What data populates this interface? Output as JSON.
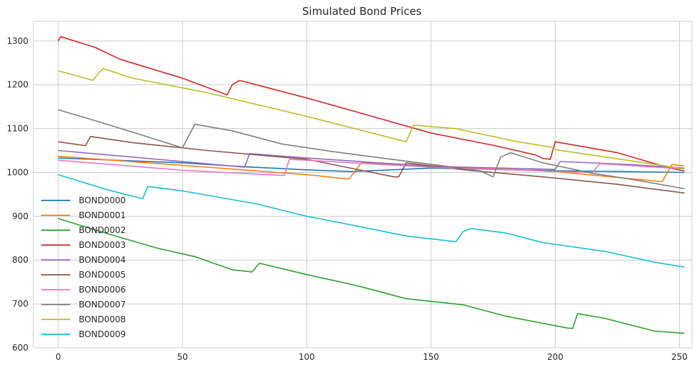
{
  "chart_data": {
    "type": "line",
    "title": "Simulated Bond Prices",
    "xlabel": "",
    "ylabel": "",
    "xlim": [
      -10,
      255
    ],
    "ylim": [
      600,
      1345
    ],
    "xticks": [
      0,
      50,
      100,
      150,
      200,
      250
    ],
    "yticks": [
      600,
      700,
      800,
      900,
      1000,
      1100,
      1200,
      1300
    ],
    "grid": true,
    "legend": "lower-left",
    "series": [
      {
        "name": "BOND0000",
        "color": "#1f77b4",
        "points": [
          [
            0,
            1033
          ],
          [
            50,
            1022
          ],
          [
            75,
            1013
          ],
          [
            100,
            1006
          ],
          [
            118,
            1002
          ],
          [
            150,
            1010
          ],
          [
            200,
            1004
          ],
          [
            252,
            1000
          ]
        ]
      },
      {
        "name": "BOND0001",
        "color": "#ff7f0e",
        "points": [
          [
            0,
            1037
          ],
          [
            60,
            1012
          ],
          [
            100,
            995
          ],
          [
            117,
            985
          ],
          [
            122,
            1022
          ],
          [
            150,
            1015
          ],
          [
            200,
            1002
          ],
          [
            243,
            979
          ],
          [
            247,
            1018
          ],
          [
            252,
            1015
          ]
        ]
      },
      {
        "name": "BOND0002",
        "color": "#2ca02c",
        "points": [
          [
            0,
            895
          ],
          [
            20,
            860
          ],
          [
            40,
            827
          ],
          [
            55,
            808
          ],
          [
            70,
            778
          ],
          [
            78,
            773
          ],
          [
            81,
            793
          ],
          [
            100,
            767
          ],
          [
            120,
            742
          ],
          [
            140,
            712
          ],
          [
            163,
            698
          ],
          [
            180,
            672
          ],
          [
            205,
            645
          ],
          [
            207,
            644
          ],
          [
            209,
            678
          ],
          [
            220,
            667
          ],
          [
            240,
            638
          ],
          [
            252,
            633
          ]
        ]
      },
      {
        "name": "BOND0003",
        "color": "#d62728",
        "points": [
          [
            0,
            1300
          ],
          [
            1,
            1310
          ],
          [
            15,
            1285
          ],
          [
            25,
            1258
          ],
          [
            50,
            1215
          ],
          [
            68,
            1177
          ],
          [
            70,
            1200
          ],
          [
            73,
            1210
          ],
          [
            100,
            1170
          ],
          [
            125,
            1130
          ],
          [
            150,
            1090
          ],
          [
            175,
            1062
          ],
          [
            192,
            1040
          ],
          [
            195,
            1032
          ],
          [
            198,
            1030
          ],
          [
            200,
            1070
          ],
          [
            225,
            1045
          ],
          [
            245,
            1012
          ],
          [
            252,
            1003
          ]
        ]
      },
      {
        "name": "BOND0004",
        "color": "#9467bd",
        "points": [
          [
            0,
            1050
          ],
          [
            40,
            1030
          ],
          [
            75,
            1012
          ],
          [
            77,
            1043
          ],
          [
            100,
            1033
          ],
          [
            150,
            1014
          ],
          [
            200,
            1007
          ],
          [
            202,
            1025
          ],
          [
            230,
            1018
          ],
          [
            252,
            1010
          ]
        ]
      },
      {
        "name": "BOND0005",
        "color": "#8c564b",
        "points": [
          [
            0,
            1070
          ],
          [
            11,
            1061
          ],
          [
            13,
            1082
          ],
          [
            30,
            1068
          ],
          [
            60,
            1050
          ],
          [
            100,
            1030
          ],
          [
            135,
            990
          ],
          [
            137,
            990
          ],
          [
            140,
            1022
          ],
          [
            165,
            1005
          ],
          [
            195,
            990
          ],
          [
            225,
            973
          ],
          [
            252,
            953
          ]
        ]
      },
      {
        "name": "BOND0006",
        "color": "#e377c2",
        "points": [
          [
            0,
            1028
          ],
          [
            50,
            1005
          ],
          [
            91,
            993
          ],
          [
            93,
            1030
          ],
          [
            150,
            1012
          ],
          [
            215,
            1000
          ],
          [
            218,
            1020
          ],
          [
            252,
            1008
          ]
        ]
      },
      {
        "name": "BOND0007",
        "color": "#7f7f7f",
        "points": [
          [
            0,
            1143
          ],
          [
            15,
            1118
          ],
          [
            30,
            1092
          ],
          [
            50,
            1056
          ],
          [
            55,
            1110
          ],
          [
            70,
            1095
          ],
          [
            90,
            1065
          ],
          [
            110,
            1048
          ],
          [
            130,
            1033
          ],
          [
            155,
            1015
          ],
          [
            170,
            1003
          ],
          [
            175,
            990
          ],
          [
            178,
            1035
          ],
          [
            182,
            1045
          ],
          [
            195,
            1022
          ],
          [
            215,
            998
          ],
          [
            230,
            985
          ],
          [
            245,
            970
          ],
          [
            252,
            963
          ]
        ]
      },
      {
        "name": "BOND0008",
        "color": "#bcbd22",
        "points": [
          [
            0,
            1232
          ],
          [
            14,
            1210
          ],
          [
            16,
            1225
          ],
          [
            18,
            1237
          ],
          [
            30,
            1215
          ],
          [
            60,
            1182
          ],
          [
            100,
            1128
          ],
          [
            140,
            1070
          ],
          [
            143,
            1108
          ],
          [
            160,
            1100
          ],
          [
            185,
            1070
          ],
          [
            198,
            1058
          ],
          [
            200,
            1052
          ],
          [
            230,
            1027
          ],
          [
            250,
            1010
          ],
          [
            252,
            1008
          ]
        ]
      },
      {
        "name": "BOND0009",
        "color": "#17becf",
        "points": [
          [
            0,
            995
          ],
          [
            20,
            960
          ],
          [
            34,
            940
          ],
          [
            36,
            968
          ],
          [
            50,
            958
          ],
          [
            80,
            928
          ],
          [
            100,
            900
          ],
          [
            120,
            878
          ],
          [
            140,
            855
          ],
          [
            160,
            842
          ],
          [
            163,
            865
          ],
          [
            166,
            872
          ],
          [
            180,
            862
          ],
          [
            195,
            840
          ],
          [
            220,
            820
          ],
          [
            240,
            795
          ],
          [
            252,
            784
          ]
        ]
      }
    ]
  }
}
